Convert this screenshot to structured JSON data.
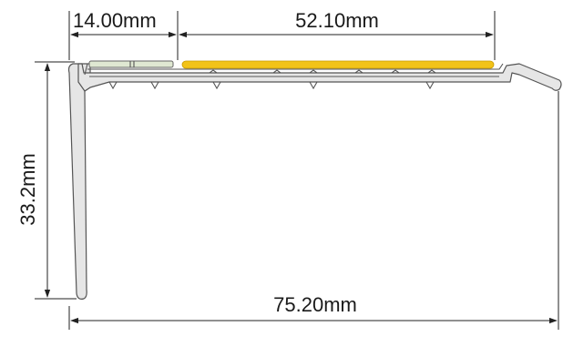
{
  "dimensions": {
    "insert_width": "14.00mm",
    "tread_width": "52.10mm",
    "total_width": "75.20mm",
    "height": "33.2mm"
  },
  "colors": {
    "profile_fill": "#e6e6e6",
    "profile_stroke": "#555555",
    "luminous_insert": "#dfe8d2",
    "anti_slip_insert": "#f2c318",
    "dimension_line": "#222222",
    "background": "#ffffff"
  }
}
